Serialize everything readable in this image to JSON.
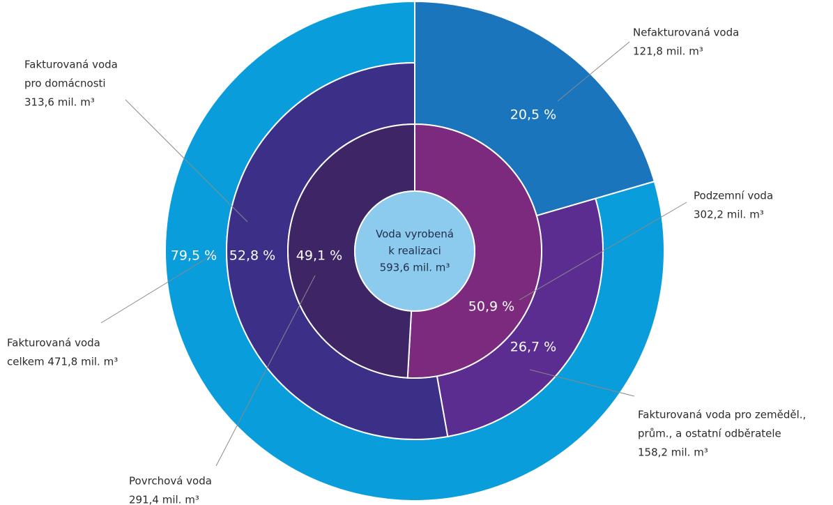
{
  "chart_data": {
    "type": "donut",
    "center_label": [
      "Voda vyrobená",
      "k realizaci",
      "593,6 mil. m³"
    ],
    "center_color": "#8ccbed",
    "rings": [
      {
        "segments": [
          {
            "label": [
              "Podzemní voda",
              "302,2 mil. m³"
            ],
            "value": 50.9,
            "value_label": "50,9 %",
            "color": "#7b2a7e"
          },
          {
            "label": [
              "Povrchová voda",
              "291,4 mil. m³"
            ],
            "value": 49.1,
            "value_label": "49,1 %",
            "color": "#3d2566"
          }
        ]
      },
      {
        "segments": [
          {
            "label": [
              "Fakturovaná voda pro zeměděl.,",
              "prům., a ostatní odběratele",
              "158,2  mil. m³"
            ],
            "value": 26.7,
            "value_label": "26,7 %",
            "color": "#5c2d91"
          },
          {
            "label": [
              "Fakturovaná voda",
              "pro domácnosti",
              "313,6 mil. m³"
            ],
            "value": 52.8,
            "value_label": "52,8 %",
            "color": "#3b2f87"
          }
        ]
      },
      {
        "segments": [
          {
            "label": [
              "Nefakturovaná voda",
              "121,8 mil. m³"
            ],
            "value": 20.5,
            "value_label": "20,5 %",
            "color": "#1b75bc"
          },
          {
            "label": [
              "Fakturovaná voda",
              "celkem 471,8 mil. m³"
            ],
            "value": 79.5,
            "value_label": "79,5 %",
            "color": "#0a9ddb"
          }
        ]
      }
    ]
  }
}
